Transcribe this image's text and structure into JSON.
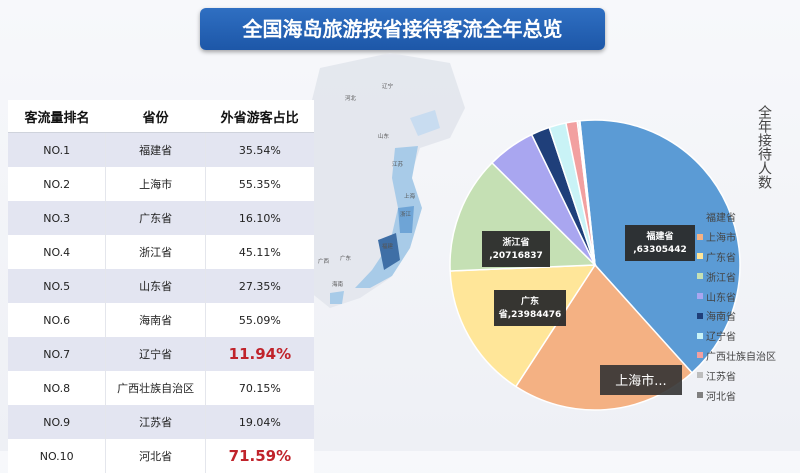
{
  "title": "全国海岛旅游按省接待客流全年总览",
  "table": {
    "headers": [
      "客流量排名",
      "省份",
      "外省游客占比"
    ],
    "rows": [
      {
        "rank": "NO.1",
        "province": "福建省",
        "share": "35.54%",
        "highlight": false
      },
      {
        "rank": "NO.2",
        "province": "上海市",
        "share": "55.35%",
        "highlight": false
      },
      {
        "rank": "NO.3",
        "province": "广东省",
        "share": "16.10%",
        "highlight": false
      },
      {
        "rank": "NO.4",
        "province": "浙江省",
        "share": "45.11%",
        "highlight": false
      },
      {
        "rank": "NO.5",
        "province": "山东省",
        "share": "27.35%",
        "highlight": false
      },
      {
        "rank": "NO.6",
        "province": "海南省",
        "share": "55.09%",
        "highlight": false
      },
      {
        "rank": "NO.7",
        "province": "辽宁省",
        "share": "11.94%",
        "highlight": true
      },
      {
        "rank": "NO.8",
        "province": "广西壮族自治区",
        "share": "70.15%",
        "highlight": false
      },
      {
        "rank": "NO.9",
        "province": "江苏省",
        "share": "19.04%",
        "highlight": false
      },
      {
        "rank": "NO.10",
        "province": "河北省",
        "share": "71.59%",
        "highlight": true
      }
    ]
  },
  "map": {
    "labels": [
      "河北",
      "辽宁",
      "山东",
      "江苏",
      "浙江",
      "福建",
      "广东",
      "广西",
      "海南",
      "上海"
    ]
  },
  "chart_data": {
    "type": "pie",
    "ylabel": "全年接待人数",
    "series": [
      {
        "name": "福建省",
        "value": 63305442,
        "color": "#5b9bd5"
      },
      {
        "name": "上海市",
        "value": 33000000,
        "color": "#f4b183"
      },
      {
        "name": "广东省",
        "value": 23984476,
        "color": "#ffe699"
      },
      {
        "name": "浙江省",
        "value": 20716837,
        "color": "#c5e0b4"
      },
      {
        "name": "山东省",
        "value": 8500000,
        "color": "#a9a6f0"
      },
      {
        "name": "海南省",
        "value": 3300000,
        "color": "#1f3f7a"
      },
      {
        "name": "辽宁省",
        "value": 3000000,
        "color": "#c9f3f6"
      },
      {
        "name": "广西壮族自治区",
        "value": 2000000,
        "color": "#f2a0a0"
      },
      {
        "name": "江苏省",
        "value": 300000,
        "color": "#bdbdbd"
      },
      {
        "name": "河北省",
        "value": 150000,
        "color": "#7f7f7f"
      }
    ],
    "data_labels": [
      {
        "series": "福建省",
        "lines": [
          "福建省",
          ",63305442"
        ]
      },
      {
        "series": "广东省",
        "lines": [
          "广东",
          "省,23984476"
        ]
      },
      {
        "series": "浙江省",
        "lines": [
          "浙江省",
          ",20716837"
        ]
      },
      {
        "series": "上海市",
        "lines": [
          "上海市..."
        ]
      }
    ],
    "legend_position": "right"
  }
}
